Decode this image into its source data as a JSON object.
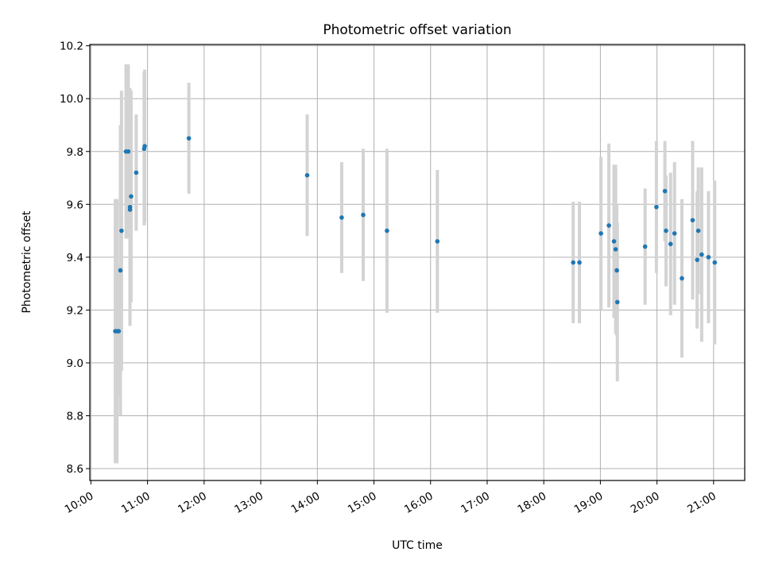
{
  "chart_data": {
    "type": "scatter",
    "title": "Photometric offset variation",
    "xlabel": "UTC time",
    "ylabel": "Photometric offset",
    "x_unit": "hours UTC",
    "xlim": [
      9.98,
      21.55
    ],
    "ylim": [
      8.555,
      10.205
    ],
    "x_ticks": [
      {
        "value": 10,
        "label": "10:00"
      },
      {
        "value": 11,
        "label": "11:00"
      },
      {
        "value": 12,
        "label": "12:00"
      },
      {
        "value": 13,
        "label": "13:00"
      },
      {
        "value": 14,
        "label": "14:00"
      },
      {
        "value": 15,
        "label": "15:00"
      },
      {
        "value": 16,
        "label": "16:00"
      },
      {
        "value": 17,
        "label": "17:00"
      },
      {
        "value": 18,
        "label": "18:00"
      },
      {
        "value": 19,
        "label": "19:00"
      },
      {
        "value": 20,
        "label": "20:00"
      },
      {
        "value": 21,
        "label": "21:00"
      }
    ],
    "y_ticks": [
      {
        "value": 8.6,
        "label": "8.6"
      },
      {
        "value": 8.8,
        "label": "8.8"
      },
      {
        "value": 9.0,
        "label": "9.0"
      },
      {
        "value": 9.2,
        "label": "9.2"
      },
      {
        "value": 9.4,
        "label": "9.4"
      },
      {
        "value": 9.6,
        "label": "9.6"
      },
      {
        "value": 9.8,
        "label": "9.8"
      },
      {
        "value": 10.0,
        "label": "10.0"
      },
      {
        "value": 10.2,
        "label": "10.2"
      }
    ],
    "grid": true,
    "legend": "none",
    "colors": {
      "point": "#1f77b4",
      "errorbar": "#d3d3d3"
    },
    "points": [
      {
        "x": 10.43,
        "y": 9.12,
        "err": 0.5
      },
      {
        "x": 10.46,
        "y": 9.12,
        "err": 0.5
      },
      {
        "x": 10.49,
        "y": 9.12,
        "err": 0.25
      },
      {
        "x": 10.52,
        "y": 9.35,
        "err": 0.55
      },
      {
        "x": 10.54,
        "y": 9.5,
        "err": 0.53
      },
      {
        "x": 10.62,
        "y": 9.8,
        "err": 0.33
      },
      {
        "x": 10.66,
        "y": 9.8,
        "err": 0.33
      },
      {
        "x": 10.69,
        "y": 9.58,
        "err": 0.43
      },
      {
        "x": 10.69,
        "y": 9.59,
        "err": 0.45
      },
      {
        "x": 10.71,
        "y": 9.63,
        "err": 0.4
      },
      {
        "x": 10.8,
        "y": 9.72,
        "err": 0.22
      },
      {
        "x": 10.94,
        "y": 9.81,
        "err": 0.29
      },
      {
        "x": 10.95,
        "y": 9.82,
        "err": 0.29
      },
      {
        "x": 11.73,
        "y": 9.85,
        "err": 0.21
      },
      {
        "x": 13.82,
        "y": 9.71,
        "err": 0.23
      },
      {
        "x": 14.43,
        "y": 9.55,
        "err": 0.21
      },
      {
        "x": 14.81,
        "y": 9.56,
        "err": 0.25
      },
      {
        "x": 15.23,
        "y": 9.5,
        "err": 0.31
      },
      {
        "x": 16.12,
        "y": 9.46,
        "err": 0.27
      },
      {
        "x": 18.52,
        "y": 9.38,
        "err": 0.23
      },
      {
        "x": 18.63,
        "y": 9.38,
        "err": 0.23
      },
      {
        "x": 19.01,
        "y": 9.49,
        "err": 0.29
      },
      {
        "x": 19.15,
        "y": 9.52,
        "err": 0.31
      },
      {
        "x": 19.24,
        "y": 9.46,
        "err": 0.29
      },
      {
        "x": 19.27,
        "y": 9.43,
        "err": 0.32
      },
      {
        "x": 19.29,
        "y": 9.35,
        "err": 0.25
      },
      {
        "x": 19.3,
        "y": 9.23,
        "err": 0.3
      },
      {
        "x": 19.79,
        "y": 9.44,
        "err": 0.22
      },
      {
        "x": 19.99,
        "y": 9.59,
        "err": 0.25
      },
      {
        "x": 20.14,
        "y": 9.65,
        "err": 0.19
      },
      {
        "x": 20.16,
        "y": 9.5,
        "err": 0.21
      },
      {
        "x": 20.24,
        "y": 9.45,
        "err": 0.27
      },
      {
        "x": 20.31,
        "y": 9.49,
        "err": 0.27
      },
      {
        "x": 20.44,
        "y": 9.32,
        "err": 0.3
      },
      {
        "x": 20.63,
        "y": 9.54,
        "err": 0.3
      },
      {
        "x": 20.71,
        "y": 9.39,
        "err": 0.26
      },
      {
        "x": 20.73,
        "y": 9.5,
        "err": 0.24
      },
      {
        "x": 20.79,
        "y": 9.41,
        "err": 0.33
      },
      {
        "x": 20.91,
        "y": 9.4,
        "err": 0.25
      },
      {
        "x": 21.02,
        "y": 9.38,
        "err": 0.31
      }
    ]
  }
}
